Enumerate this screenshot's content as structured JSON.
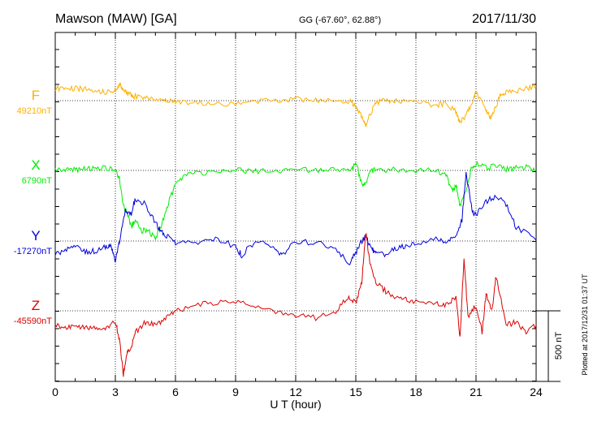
{
  "header": {
    "station": "Mawson (MAW)  [GA]",
    "coords": "GG (-67.60°,  62.88°)",
    "date": "2017/11/30"
  },
  "plotted_note": "Plotted at 2017/12/31 01:37 UT",
  "scale_label": "500 nT",
  "chart_data": {
    "type": "line",
    "xlabel": "U T (hour)",
    "xlim": [
      0,
      24
    ],
    "x_ticks": [
      "0",
      "3",
      "6",
      "9",
      "12",
      "15",
      "18",
      "21",
      "24"
    ],
    "scale_nT": 500,
    "series": [
      {
        "name": "F",
        "baseline_label": "49210nT",
        "color": "#FFB000",
        "x": [
          0,
          0.5,
          1,
          1.5,
          2,
          2.5,
          3,
          3.2,
          3.4,
          3.6,
          3.8,
          4,
          4.5,
          5,
          5.5,
          6,
          7,
          8,
          9,
          10,
          11,
          12,
          13,
          14,
          14.7,
          15,
          15.2,
          15.4,
          15.5,
          15.7,
          16,
          16.5,
          17,
          18,
          19,
          19.5,
          20,
          20.2,
          20.5,
          20.8,
          21,
          21.5,
          21.7,
          21.9,
          22.2,
          22.5,
          23,
          23.5,
          24
        ],
        "values": [
          90,
          80,
          85,
          80,
          70,
          60,
          80,
          110,
          90,
          60,
          40,
          30,
          20,
          15,
          10,
          -10,
          -15,
          -20,
          -25,
          -10,
          5,
          10,
          0,
          0,
          -5,
          -40,
          -90,
          -150,
          -170,
          -100,
          -10,
          0,
          -5,
          -10,
          -30,
          -20,
          -80,
          -160,
          -100,
          -20,
          60,
          -60,
          -120,
          -80,
          40,
          60,
          70,
          90,
          100
        ]
      },
      {
        "name": "X",
        "baseline_label": "6790nT",
        "color": "#00EE00",
        "x": [
          0,
          0.5,
          1,
          1.5,
          2,
          2.5,
          3,
          3.2,
          3.4,
          3.6,
          3.8,
          4,
          4.3,
          4.6,
          5,
          5.3,
          5.6,
          6,
          6.5,
          7,
          8,
          9,
          10,
          11,
          12,
          13,
          14,
          14.8,
          15,
          15.3,
          15.5,
          15.7,
          16,
          17,
          18,
          19,
          19.5,
          19.8,
          20,
          20.2,
          20.5,
          20.8,
          21,
          21.5,
          22,
          22.5,
          23,
          23.5,
          24
        ],
        "values": [
          5,
          0,
          5,
          10,
          10,
          20,
          0,
          -60,
          -250,
          -300,
          -400,
          -340,
          -430,
          -420,
          -480,
          -390,
          -250,
          -100,
          -30,
          -20,
          -10,
          0,
          -5,
          0,
          0,
          5,
          5,
          10,
          60,
          -100,
          -90,
          0,
          0,
          5,
          0,
          0,
          -30,
          -150,
          -100,
          -250,
          -150,
          30,
          50,
          20,
          30,
          10,
          20,
          20,
          0
        ]
      },
      {
        "name": "Y",
        "baseline_label": "-17270nT",
        "color": "#0000DD",
        "x": [
          0,
          0.5,
          1,
          1.5,
          2,
          2.5,
          2.8,
          3,
          3.2,
          3.5,
          3.8,
          4,
          4.5,
          5,
          5.3,
          5.6,
          6,
          7,
          8,
          9,
          9.3,
          10,
          11,
          11.3,
          12,
          13,
          14,
          14.7,
          15,
          15.3,
          15.5,
          15.8,
          16,
          16.5,
          17,
          17.5,
          18,
          19,
          19.5,
          20,
          20.3,
          20.5,
          20.8,
          21,
          21.5,
          22,
          22.5,
          23,
          24
        ],
        "values": [
          -100,
          -60,
          -40,
          -80,
          -70,
          -40,
          -30,
          -150,
          -10,
          220,
          200,
          300,
          260,
          130,
          60,
          30,
          -10,
          -10,
          20,
          -40,
          -100,
          0,
          -50,
          -100,
          -5,
          -10,
          -50,
          -160,
          -80,
          0,
          40,
          -60,
          -80,
          -100,
          -50,
          -40,
          -10,
          10,
          0,
          50,
          150,
          480,
          220,
          180,
          280,
          320,
          260,
          100,
          5
        ]
      },
      {
        "name": "Z",
        "baseline_label": "-45590nT",
        "color": "#DD0000",
        "x": [
          0,
          0.5,
          1,
          1.5,
          2,
          2.5,
          3,
          3.2,
          3.4,
          3.6,
          3.8,
          4,
          4.5,
          5,
          5.5,
          6,
          7,
          8,
          9,
          10,
          11,
          12,
          13,
          14,
          14.6,
          15,
          15.3,
          15.5,
          15.7,
          16,
          16.5,
          17,
          17.5,
          18,
          19,
          19.5,
          20,
          20.2,
          20.4,
          20.6,
          21,
          21.3,
          21.5,
          21.8,
          22,
          22.5,
          23,
          23.5,
          24
        ],
        "values": [
          -100,
          -120,
          -100,
          -120,
          -110,
          -130,
          -80,
          -200,
          -450,
          -300,
          -250,
          -150,
          -80,
          -100,
          -60,
          0,
          40,
          60,
          60,
          40,
          0,
          -30,
          -50,
          -10,
          100,
          50,
          200,
          560,
          350,
          200,
          140,
          90,
          80,
          70,
          60,
          40,
          100,
          -200,
          380,
          -50,
          40,
          -150,
          120,
          0,
          250,
          -100,
          -80,
          -150,
          -100
        ]
      }
    ]
  }
}
